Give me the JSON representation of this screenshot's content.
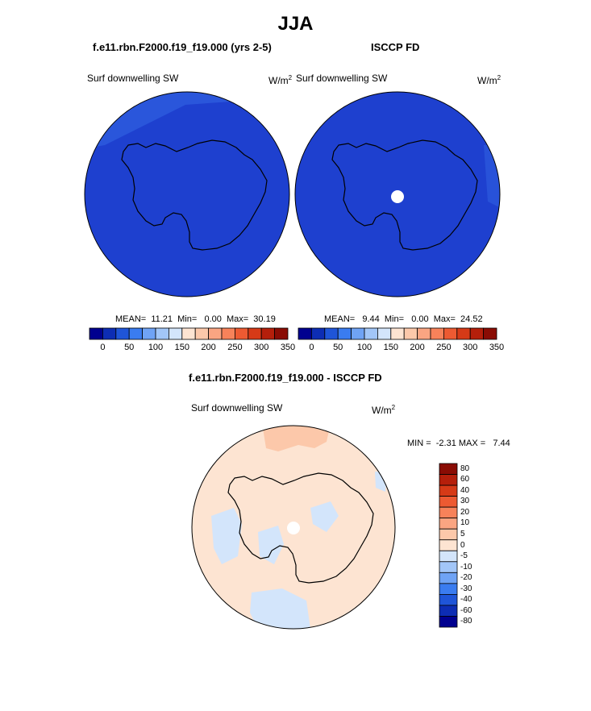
{
  "title": "JJA",
  "panels": {
    "left": {
      "title": "f.e11.rbn.F2000.f19_f19.000 (yrs 2-5)",
      "variable": "Surf downwelling SW",
      "units_base": "W/m",
      "units_exp": "2",
      "stats": "MEAN=  11.21  Min=   0.00  Max=  30.19"
    },
    "right": {
      "title": "ISCCP FD",
      "variable": "Surf downwelling SW",
      "units_base": "W/m",
      "units_exp": "2",
      "stats": "MEAN=   9.44  Min=   0.00  Max=  24.52"
    },
    "diff": {
      "title": "f.e11.rbn.F2000.f19_f19.000 - ISCCP FD",
      "variable": "Surf downwelling SW",
      "units_base": "W/m",
      "units_exp": "2",
      "stats": "MIN =  -2.31 MAX =   7.44"
    }
  },
  "colorbar_main": {
    "labels": [
      "0",
      "50",
      "100",
      "150",
      "200",
      "250",
      "300",
      "350"
    ],
    "colors": [
      "#00008f",
      "#0d2db4",
      "#1f55d8",
      "#3a7cf0",
      "#6fa3f5",
      "#a2c6f8",
      "#d3e5fb",
      "#fde4d2",
      "#fcc8aa",
      "#faa582",
      "#f7825a",
      "#ed5a32",
      "#d63a17",
      "#b51f0b",
      "#8a0c04"
    ]
  },
  "colorbar_diff": {
    "labels": [
      "80",
      "60",
      "40",
      "30",
      "20",
      "10",
      "5",
      "0",
      "-5",
      "-10",
      "-20",
      "-30",
      "-40",
      "-60",
      "-80"
    ],
    "colors": [
      "#8a0c04",
      "#b51f0b",
      "#d63a17",
      "#ed5a32",
      "#f7825a",
      "#faa582",
      "#fcc8aa",
      "#fde4d2",
      "#d3e5fb",
      "#a2c6f8",
      "#6fa3f5",
      "#3a7cf0",
      "#1f55d8",
      "#0d2db4",
      "#00008f"
    ]
  },
  "map_colors": {
    "field_low": "#1e40cf",
    "field_edge": "#2f5fe0",
    "diff_pos": "#fde4d2",
    "diff_pos2": "#fcc8aa",
    "diff_neg": "#d3e5fb",
    "missing": "#ffffff"
  }
}
